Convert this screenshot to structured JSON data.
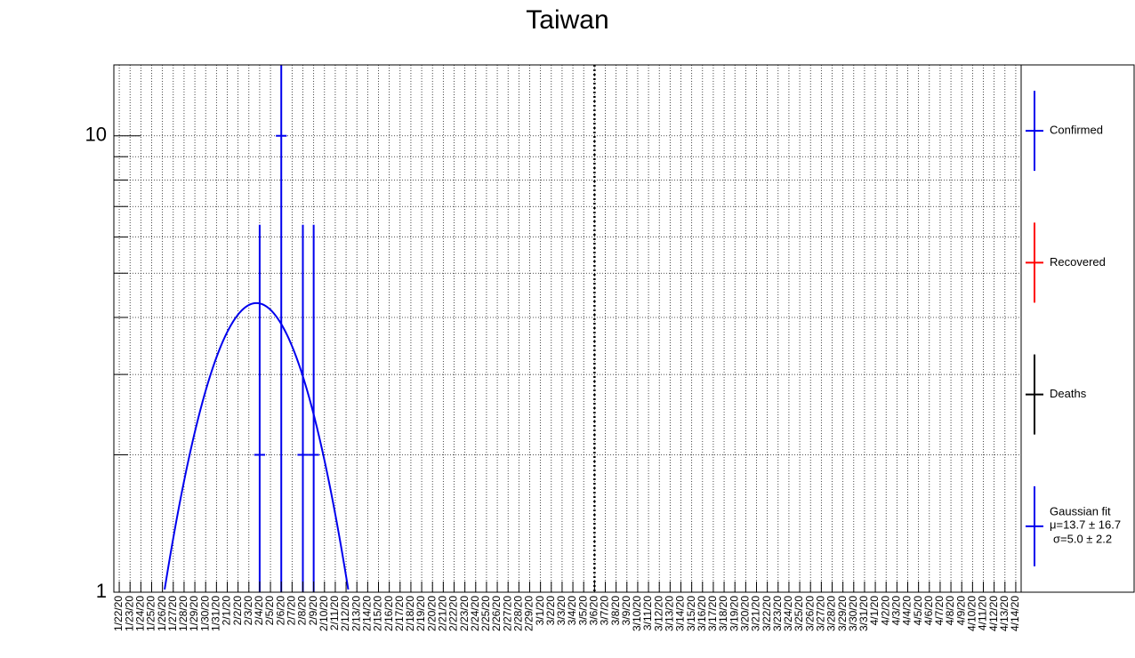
{
  "chart_data": {
    "type": "scatter",
    "title": "Taiwan",
    "xlabel": "",
    "ylabel": "",
    "y_scale": "log",
    "ylim": [
      1,
      14.3
    ],
    "y_ticks": [
      "1",
      "10"
    ],
    "grid": true,
    "x_categories": [
      "1/22/20",
      "1/23/20",
      "1/24/20",
      "1/25/20",
      "1/26/20",
      "1/27/20",
      "1/28/20",
      "1/29/20",
      "1/30/20",
      "1/31/20",
      "2/1/20",
      "2/2/20",
      "2/3/20",
      "2/4/20",
      "2/5/20",
      "2/6/20",
      "2/7/20",
      "2/8/20",
      "2/9/20",
      "2/10/20",
      "2/11/20",
      "2/12/20",
      "2/13/20",
      "2/14/20",
      "2/15/20",
      "2/16/20",
      "2/17/20",
      "2/18/20",
      "2/19/20",
      "2/20/20",
      "2/21/20",
      "2/22/20",
      "2/23/20",
      "2/24/20",
      "2/25/20",
      "2/26/20",
      "2/27/20",
      "2/28/20",
      "2/29/20",
      "3/1/20",
      "3/2/20",
      "3/3/20",
      "3/4/20",
      "3/5/20",
      "3/6/20",
      "3/7/20",
      "3/8/20",
      "3/9/20",
      "3/10/20",
      "3/11/20",
      "3/12/20",
      "3/13/20",
      "3/14/20",
      "3/15/20",
      "3/16/20",
      "3/17/20",
      "3/18/20",
      "3/19/20",
      "3/20/20",
      "3/21/20",
      "3/22/20",
      "3/23/20",
      "3/24/20",
      "3/25/20",
      "3/26/20",
      "3/27/20",
      "3/28/20",
      "3/29/20",
      "3/30/20",
      "3/31/20",
      "4/1/20",
      "4/2/20",
      "4/3/20",
      "4/4/20",
      "4/5/20",
      "4/6/20",
      "4/7/20",
      "4/8/20",
      "4/9/20",
      "4/10/20",
      "4/11/20",
      "4/12/20",
      "4/13/20",
      "4/14/20"
    ],
    "x_tick_labels": [
      "1/22/20",
      "1/23/20",
      "1/24/20",
      "1/25/20",
      "1/26/20",
      "1/27/20",
      "1/28/20",
      "1/29/20",
      "1/30/20",
      "1/31/20",
      "2/1/20",
      "2/2/20",
      "2/3/20",
      "2/4/20",
      "2/5/20",
      "2/6/20",
      "2/7/20",
      "2/8/20",
      "2/9/20",
      "2/10/20",
      "2/11/20",
      "2/12/20",
      "2/13/20",
      "2/14/20",
      "2/15/20",
      "2/16/20",
      "2/17/20",
      "2/18/20",
      "2/19/20",
      "2/20/20",
      "2/21/20",
      "2/22/20",
      "2/23/20",
      "2/24/20",
      "2/25/20",
      "2/26/20",
      "2/27/20",
      "2/28/20",
      "2/29/20",
      "3/1/20",
      "3/2/20",
      "3/3/20",
      "3/4/20",
      "3/5/20",
      "3/6/20",
      "3/7/20",
      "3/8/20",
      "3/9/20",
      "3/10/20",
      "3/11/20",
      "3/12/20",
      "3/13/20",
      "3/14/20",
      "3/15/20",
      "3/16/20",
      "3/17/20",
      "3/18/20",
      "3/19/20",
      "3/20/20",
      "3/21/20",
      "3/22/20",
      "3/23/20",
      "3/24/20",
      "3/25/20",
      "3/26/20",
      "3/27/20",
      "3/28/20",
      "3/29/20",
      "3/30/20",
      "3/31/20",
      "4/1/20",
      "4/2/20",
      "4/3/20",
      "4/4/20",
      "4/5/20",
      "4/6/20",
      "4/7/20",
      "4/8/20",
      "4/9/20",
      "4/10/20",
      "4/11/20",
      "4/12/20",
      "4/13/20",
      "4/14/20"
    ],
    "series": [
      {
        "name": "Confirmed",
        "color": "#0000ee",
        "points": [
          {
            "x": "2/4/20",
            "y": 2
          },
          {
            "x": "2/6/20",
            "y": 10
          },
          {
            "x": "2/8/20",
            "y": 2
          },
          {
            "x": "2/9/20",
            "y": 2
          }
        ]
      },
      {
        "name": "Recovered",
        "color": "#ff0000",
        "points": []
      },
      {
        "name": "Deaths",
        "color": "#000000",
        "points": []
      }
    ],
    "fit": {
      "name": "Gaussian fit",
      "color": "#0000ee",
      "mu": 13.7,
      "sigma": 5.0,
      "amplitude": 4.3,
      "mu_label": "μ=13.7 ± 16.7",
      "sigma_label": "σ=5.0 ± 2.2"
    },
    "vertical_marker": {
      "x": "3/6/20",
      "style": "dotted",
      "color": "#000000"
    },
    "legend": {
      "placement": "right"
    }
  }
}
